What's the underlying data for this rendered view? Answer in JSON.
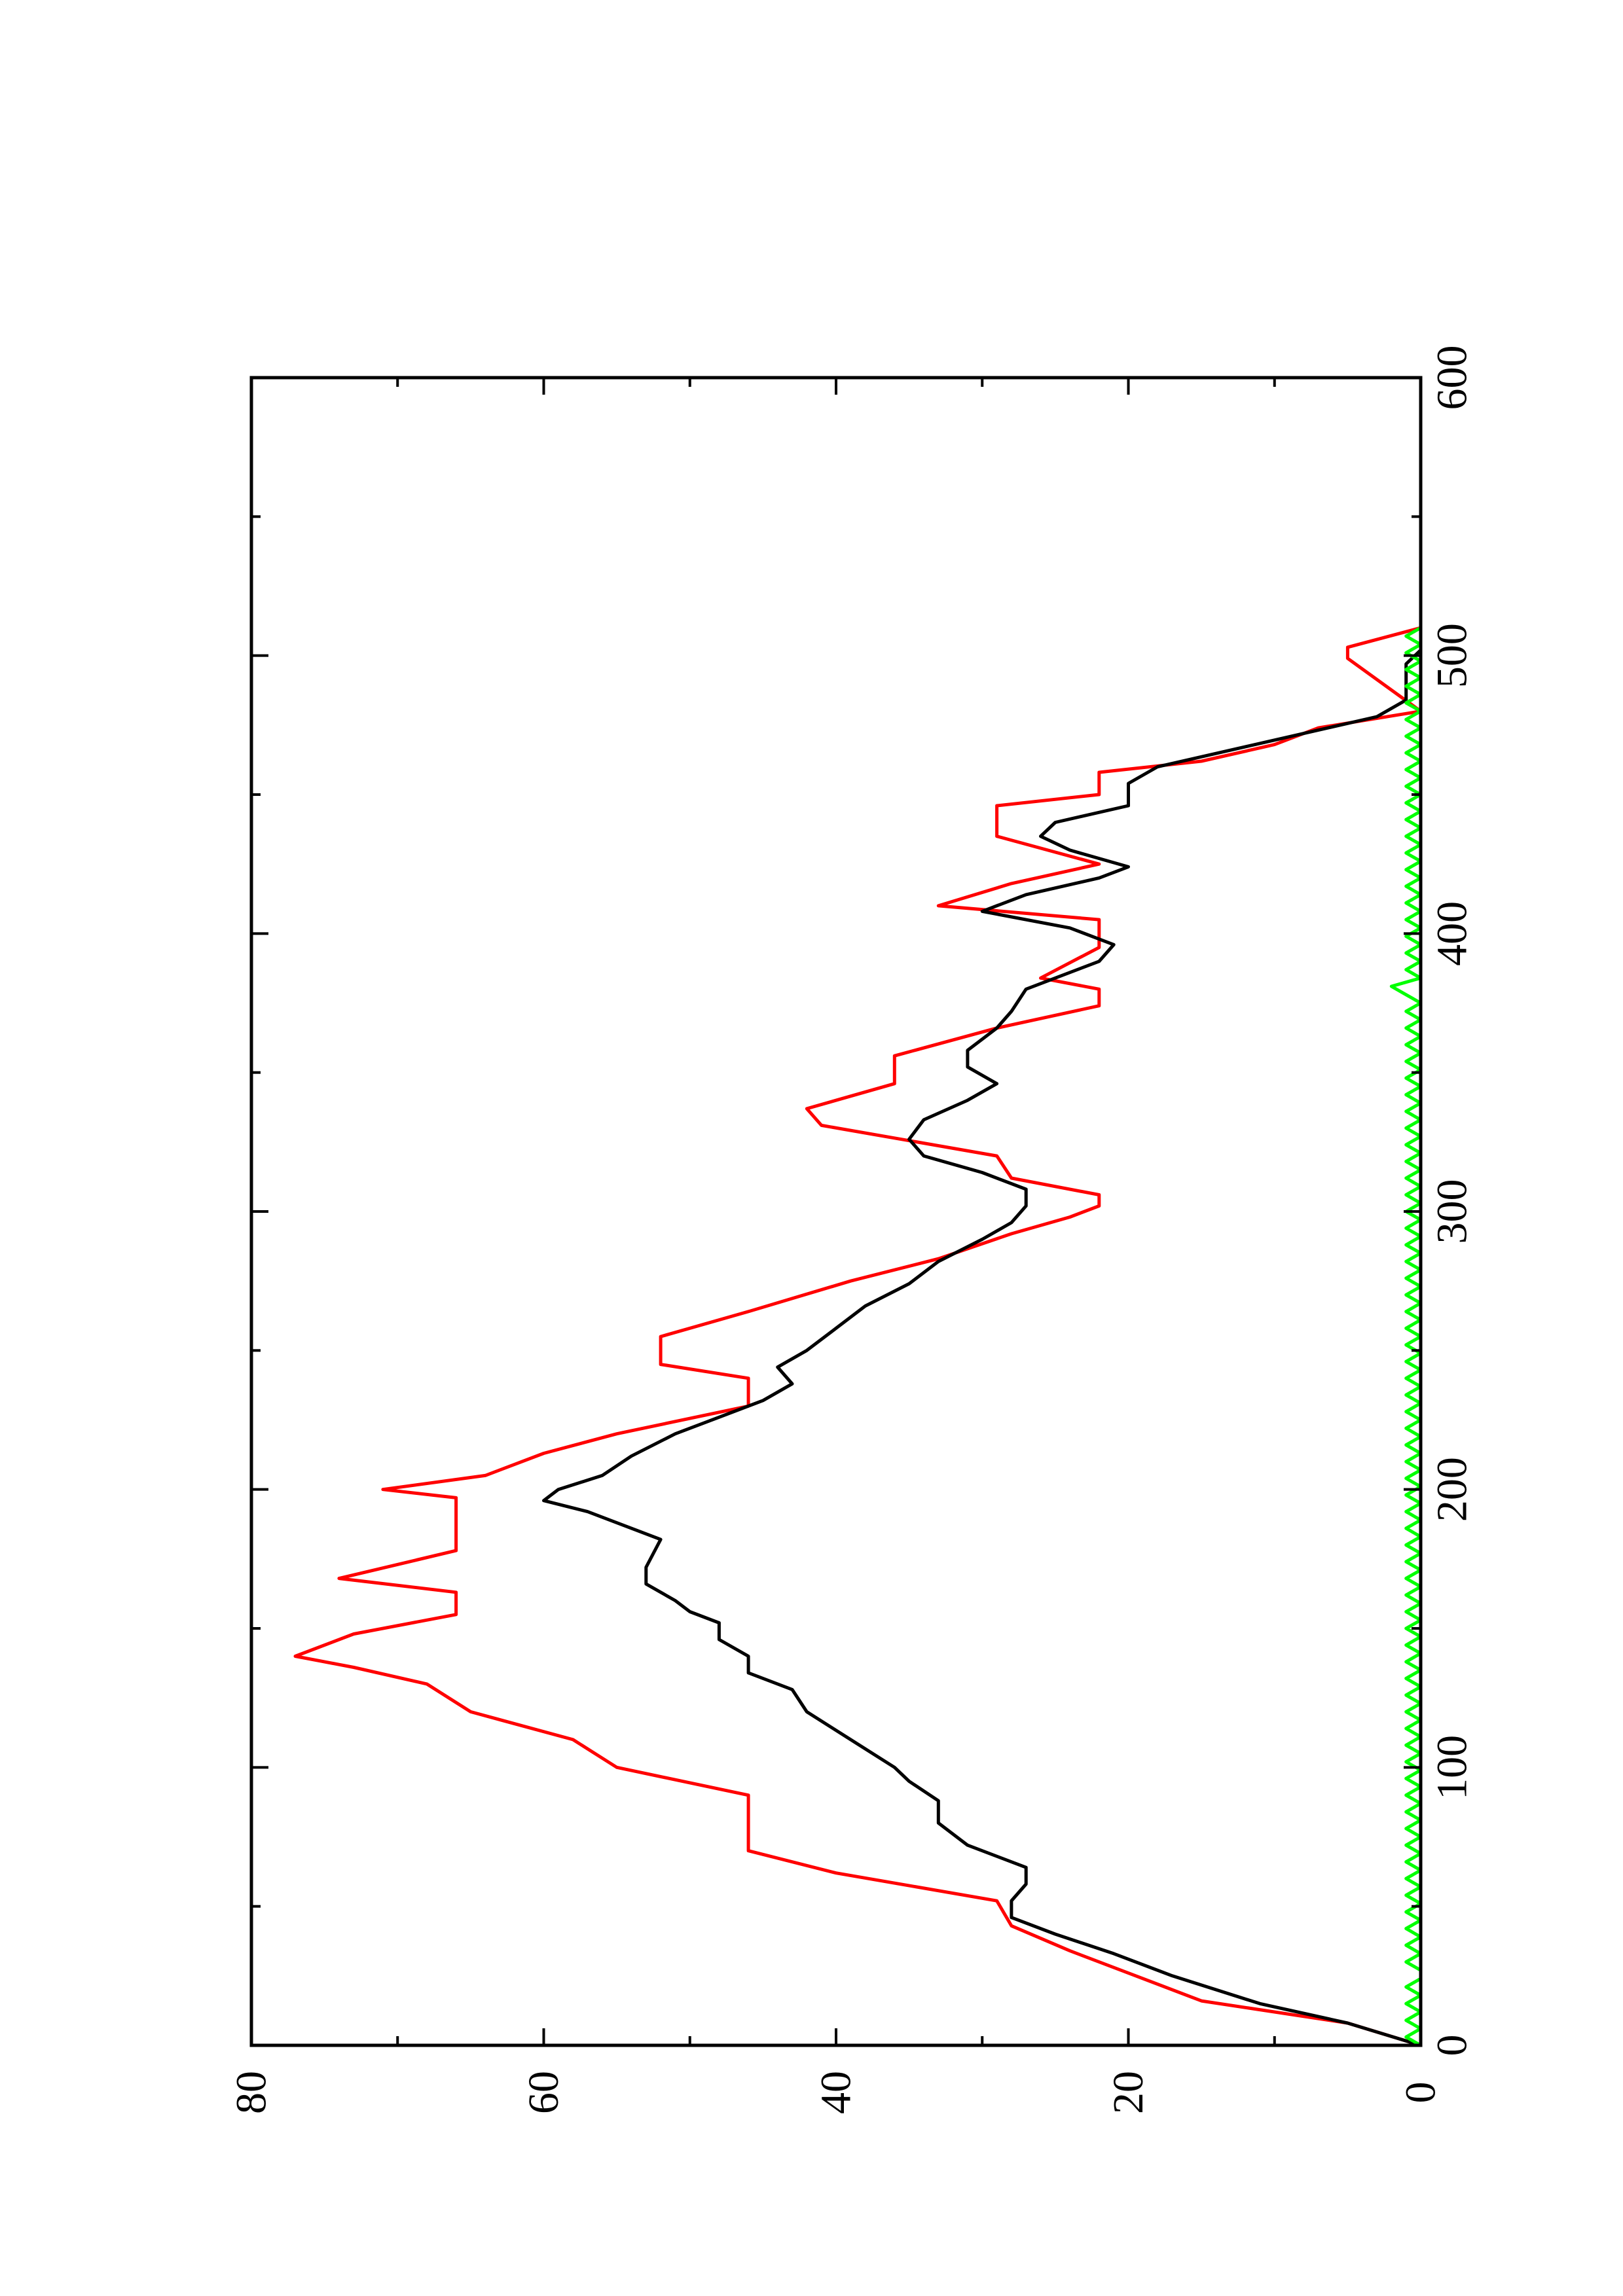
{
  "chart_data": {
    "type": "line",
    "orientation": "rotated-90-ccw",
    "title": "",
    "xlabel": "",
    "ylabel": "",
    "xlim": [
      0,
      600
    ],
    "ylim": [
      0,
      80
    ],
    "x_ticks": [
      0,
      100,
      200,
      300,
      400,
      500,
      600
    ],
    "x_tick_labels": [
      "0",
      "100",
      "200",
      "300",
      "400",
      "500",
      "600"
    ],
    "x_minor_ticks": [
      50,
      150,
      250,
      350,
      450,
      550
    ],
    "y_ticks": [
      0,
      20,
      40,
      60,
      80
    ],
    "y_tick_labels": [
      "0",
      "20",
      "40",
      "60",
      "80"
    ],
    "y_minor_ticks": [
      10,
      30,
      50,
      70
    ],
    "grid": false,
    "legend": "none",
    "series": [
      {
        "color": "#ff0000",
        "values": [
          [
            0,
            0
          ],
          [
            8,
            5
          ],
          [
            16,
            15
          ],
          [
            26,
            20
          ],
          [
            34,
            24
          ],
          [
            43,
            28
          ],
          [
            52,
            29
          ],
          [
            62,
            40
          ],
          [
            70,
            46
          ],
          [
            90,
            46
          ],
          [
            100,
            55
          ],
          [
            110,
            58
          ],
          [
            120,
            65
          ],
          [
            130,
            68
          ],
          [
            136,
            73
          ],
          [
            140,
            77
          ],
          [
            148,
            73
          ],
          [
            155,
            66
          ],
          [
            163,
            66
          ],
          [
            168,
            74
          ],
          [
            178,
            66
          ],
          [
            197,
            66
          ],
          [
            200,
            71
          ],
          [
            205,
            64
          ],
          [
            213,
            60
          ],
          [
            220,
            55
          ],
          [
            230,
            46
          ],
          [
            240,
            46
          ],
          [
            245,
            52
          ],
          [
            255,
            52
          ],
          [
            264,
            46
          ],
          [
            275,
            39
          ],
          [
            283,
            33
          ],
          [
            292,
            28
          ],
          [
            298,
            24
          ],
          [
            302,
            22
          ],
          [
            306,
            22
          ],
          [
            312,
            28
          ],
          [
            320,
            29
          ],
          [
            331,
            41
          ],
          [
            337,
            42
          ],
          [
            346,
            36
          ],
          [
            356,
            36
          ],
          [
            366,
            29
          ],
          [
            374,
            22
          ],
          [
            380,
            22
          ],
          [
            384,
            26
          ],
          [
            395,
            22
          ],
          [
            405,
            22
          ],
          [
            410,
            33
          ],
          [
            418,
            28
          ],
          [
            425,
            22
          ],
          [
            435,
            29
          ],
          [
            446,
            29
          ],
          [
            450,
            22
          ],
          [
            458,
            22
          ],
          [
            462,
            15
          ],
          [
            468,
            10
          ],
          [
            474,
            7
          ],
          [
            480,
            0
          ],
          [
            499,
            5
          ],
          [
            503,
            5
          ],
          [
            510,
            0
          ]
        ]
      },
      {
        "color": "#000000",
        "values": [
          [
            0,
            0
          ],
          [
            8,
            5
          ],
          [
            15,
            11
          ],
          [
            25,
            17
          ],
          [
            33,
            21
          ],
          [
            40,
            25
          ],
          [
            46,
            28
          ],
          [
            52,
            28
          ],
          [
            58,
            27
          ],
          [
            64,
            27
          ],
          [
            72,
            31
          ],
          [
            80,
            33
          ],
          [
            88,
            33
          ],
          [
            95,
            35
          ],
          [
            100,
            36
          ],
          [
            110,
            39
          ],
          [
            120,
            42
          ],
          [
            128,
            43
          ],
          [
            134,
            46
          ],
          [
            140,
            46
          ],
          [
            146,
            48
          ],
          [
            152,
            48
          ],
          [
            156,
            50
          ],
          [
            160,
            51
          ],
          [
            166,
            53
          ],
          [
            172,
            53
          ],
          [
            182,
            52
          ],
          [
            188,
            55
          ],
          [
            192,
            57
          ],
          [
            196,
            60
          ],
          [
            200,
            59
          ],
          [
            205,
            56
          ],
          [
            212,
            54
          ],
          [
            220,
            51
          ],
          [
            226,
            48
          ],
          [
            232,
            45
          ],
          [
            238,
            43
          ],
          [
            244,
            44
          ],
          [
            250,
            42
          ],
          [
            258,
            40
          ],
          [
            266,
            38
          ],
          [
            274,
            35
          ],
          [
            282,
            33
          ],
          [
            290,
            30
          ],
          [
            296,
            28
          ],
          [
            302,
            27
          ],
          [
            308,
            27
          ],
          [
            314,
            30
          ],
          [
            320,
            34
          ],
          [
            326,
            35
          ],
          [
            333,
            34
          ],
          [
            340,
            31
          ],
          [
            346,
            29
          ],
          [
            352,
            31
          ],
          [
            358,
            31
          ],
          [
            366,
            29
          ],
          [
            372,
            28
          ],
          [
            380,
            27
          ],
          [
            390,
            22
          ],
          [
            396,
            21
          ],
          [
            402,
            24
          ],
          [
            408,
            30
          ],
          [
            414,
            27
          ],
          [
            420,
            22
          ],
          [
            424,
            20
          ],
          [
            430,
            24
          ],
          [
            435,
            26
          ],
          [
            440,
            25
          ],
          [
            446,
            20
          ],
          [
            454,
            20
          ],
          [
            460,
            18
          ],
          [
            466,
            13
          ],
          [
            472,
            8
          ],
          [
            478,
            3
          ],
          [
            484,
            1
          ],
          [
            490,
            1
          ],
          [
            497,
            1
          ],
          [
            502,
            0
          ],
          [
            510,
            0
          ]
        ]
      },
      {
        "color": "#00ff00",
        "values": [
          [
            0,
            0
          ],
          [
            3,
            1
          ],
          [
            6,
            0
          ],
          [
            9,
            1
          ],
          [
            12,
            0
          ],
          [
            15,
            1
          ],
          [
            18,
            0
          ],
          [
            21,
            1
          ],
          [
            24,
            0
          ],
          [
            27,
            0
          ],
          [
            30,
            1
          ],
          [
            33,
            0
          ],
          [
            36,
            1
          ],
          [
            39,
            0
          ],
          [
            42,
            1
          ],
          [
            45,
            0
          ],
          [
            48,
            1
          ],
          [
            51,
            0
          ],
          [
            54,
            1
          ],
          [
            57,
            0
          ],
          [
            60,
            1
          ],
          [
            63,
            0
          ],
          [
            66,
            1
          ],
          [
            69,
            0
          ],
          [
            72,
            1
          ],
          [
            75,
            0
          ],
          [
            78,
            1
          ],
          [
            81,
            0
          ],
          [
            84,
            1
          ],
          [
            87,
            0
          ],
          [
            90,
            1
          ],
          [
            93,
            0
          ],
          [
            96,
            1
          ],
          [
            99,
            0
          ],
          [
            102,
            1
          ],
          [
            105,
            0
          ],
          [
            108,
            1
          ],
          [
            111,
            0
          ],
          [
            114,
            1
          ],
          [
            117,
            0
          ],
          [
            120,
            1
          ],
          [
            123,
            0
          ],
          [
            126,
            1
          ],
          [
            129,
            0
          ],
          [
            132,
            1
          ],
          [
            135,
            0
          ],
          [
            138,
            1
          ],
          [
            141,
            0
          ],
          [
            144,
            1
          ],
          [
            147,
            0
          ],
          [
            150,
            1
          ],
          [
            153,
            0
          ],
          [
            156,
            1
          ],
          [
            159,
            0
          ],
          [
            162,
            1
          ],
          [
            165,
            0
          ],
          [
            168,
            1
          ],
          [
            171,
            0
          ],
          [
            174,
            1
          ],
          [
            177,
            0
          ],
          [
            180,
            1
          ],
          [
            183,
            0
          ],
          [
            186,
            1
          ],
          [
            189,
            0
          ],
          [
            192,
            1
          ],
          [
            195,
            0
          ],
          [
            198,
            1
          ],
          [
            201,
            0
          ],
          [
            204,
            1
          ],
          [
            207,
            0
          ],
          [
            210,
            1
          ],
          [
            213,
            0
          ],
          [
            216,
            1
          ],
          [
            219,
            0
          ],
          [
            222,
            1
          ],
          [
            225,
            0
          ],
          [
            228,
            1
          ],
          [
            231,
            0
          ],
          [
            234,
            1
          ],
          [
            237,
            0
          ],
          [
            240,
            1
          ],
          [
            243,
            0
          ],
          [
            246,
            1
          ],
          [
            249,
            0
          ],
          [
            252,
            1
          ],
          [
            255,
            0
          ],
          [
            258,
            1
          ],
          [
            261,
            0
          ],
          [
            264,
            1
          ],
          [
            267,
            0
          ],
          [
            270,
            1
          ],
          [
            273,
            0
          ],
          [
            276,
            1
          ],
          [
            279,
            0
          ],
          [
            282,
            1
          ],
          [
            285,
            0
          ],
          [
            288,
            1
          ],
          [
            291,
            0
          ],
          [
            294,
            1
          ],
          [
            297,
            0
          ],
          [
            300,
            1
          ],
          [
            303,
            0
          ],
          [
            306,
            1
          ],
          [
            309,
            0
          ],
          [
            312,
            1
          ],
          [
            315,
            0
          ],
          [
            318,
            1
          ],
          [
            321,
            0
          ],
          [
            324,
            1
          ],
          [
            327,
            0
          ],
          [
            330,
            1
          ],
          [
            333,
            0
          ],
          [
            336,
            1
          ],
          [
            339,
            0
          ],
          [
            342,
            1
          ],
          [
            345,
            0
          ],
          [
            348,
            1
          ],
          [
            351,
            0
          ],
          [
            354,
            1
          ],
          [
            357,
            0
          ],
          [
            360,
            1
          ],
          [
            363,
            0
          ],
          [
            366,
            1
          ],
          [
            369,
            0
          ],
          [
            372,
            1
          ],
          [
            375,
            0
          ],
          [
            378,
            1
          ],
          [
            381,
            2
          ],
          [
            384,
            0
          ],
          [
            387,
            1
          ],
          [
            390,
            0
          ],
          [
            393,
            1
          ],
          [
            396,
            0
          ],
          [
            399,
            1
          ],
          [
            402,
            0
          ],
          [
            405,
            1
          ],
          [
            408,
            0
          ],
          [
            411,
            1
          ],
          [
            414,
            0
          ],
          [
            417,
            1
          ],
          [
            420,
            0
          ],
          [
            423,
            1
          ],
          [
            426,
            0
          ],
          [
            429,
            1
          ],
          [
            432,
            0
          ],
          [
            435,
            1
          ],
          [
            438,
            0
          ],
          [
            441,
            1
          ],
          [
            444,
            0
          ],
          [
            447,
            1
          ],
          [
            450,
            0
          ],
          [
            453,
            1
          ],
          [
            456,
            0
          ],
          [
            459,
            1
          ],
          [
            462,
            0
          ],
          [
            465,
            1
          ],
          [
            468,
            0
          ],
          [
            471,
            1
          ],
          [
            474,
            0
          ],
          [
            477,
            1
          ],
          [
            480,
            0
          ],
          [
            483,
            1
          ],
          [
            486,
            0
          ],
          [
            489,
            1
          ],
          [
            492,
            0
          ],
          [
            495,
            1
          ],
          [
            498,
            0
          ],
          [
            501,
            1
          ],
          [
            504,
            0
          ],
          [
            507,
            1
          ],
          [
            510,
            0
          ]
        ]
      }
    ]
  }
}
